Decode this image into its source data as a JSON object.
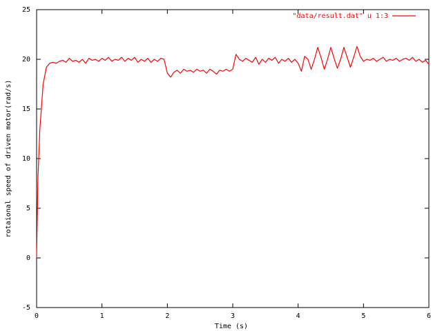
{
  "chart_data": {
    "type": "line",
    "x_label": "Time (s)",
    "y_label": "rotaional speed of driven motor(rad/s)",
    "x": [
      0,
      0.02,
      0.05,
      0.1,
      0.15,
      0.2,
      0.25,
      0.3,
      0.35,
      0.4,
      0.45,
      0.5,
      0.55,
      0.6,
      0.65,
      0.7,
      0.75,
      0.8,
      0.85,
      0.9,
      0.95,
      1,
      1.05,
      1.1,
      1.15,
      1.2,
      1.25,
      1.3,
      1.35,
      1.4,
      1.45,
      1.5,
      1.55,
      1.6,
      1.65,
      1.7,
      1.75,
      1.8,
      1.85,
      1.9,
      1.95,
      2,
      2.05,
      2.1,
      2.15,
      2.2,
      2.25,
      2.3,
      2.35,
      2.4,
      2.45,
      2.5,
      2.55,
      2.6,
      2.65,
      2.7,
      2.75,
      2.8,
      2.85,
      2.9,
      2.95,
      3,
      3.05,
      3.1,
      3.15,
      3.2,
      3.25,
      3.3,
      3.35,
      3.4,
      3.45,
      3.5,
      3.55,
      3.6,
      3.65,
      3.7,
      3.75,
      3.8,
      3.85,
      3.9,
      3.95,
      4,
      4.05,
      4.1,
      4.15,
      4.2,
      4.25,
      4.3,
      4.35,
      4.4,
      4.45,
      4.5,
      4.55,
      4.6,
      4.65,
      4.7,
      4.75,
      4.8,
      4.85,
      4.9,
      4.95,
      5,
      5.05,
      5.1,
      5.15,
      5.2,
      5.25,
      5.3,
      5.35,
      5.4,
      5.45,
      5.5,
      5.55,
      5.6,
      5.65,
      5.7,
      5.75,
      5.8,
      5.85,
      5.9,
      5.95,
      6
    ],
    "series": [
      {
        "name": "\"data/result.dat\" u 1:3",
        "color": "#ff0000",
        "values": [
          0,
          8,
          13,
          17.5,
          19.2,
          19.6,
          19.7,
          19.6,
          19.8,
          19.9,
          19.7,
          20.1,
          19.8,
          19.9,
          19.7,
          20.0,
          19.6,
          20.1,
          19.9,
          20.0,
          19.8,
          20.1,
          19.9,
          20.2,
          19.8,
          20.0,
          19.9,
          20.2,
          19.8,
          20.1,
          19.9,
          20.2,
          19.7,
          20.0,
          19.8,
          20.1,
          19.7,
          20.0,
          19.8,
          20.1,
          20.0,
          18.6,
          18.2,
          18.7,
          18.9,
          18.6,
          19.0,
          18.8,
          18.9,
          18.7,
          19.0,
          18.8,
          18.9,
          18.6,
          19.0,
          18.8,
          18.5,
          18.9,
          18.8,
          19.0,
          18.8,
          19.0,
          20.5,
          20.0,
          19.8,
          20.1,
          19.9,
          19.7,
          20.2,
          19.5,
          20.0,
          19.7,
          20.1,
          19.9,
          20.2,
          19.6,
          20.0,
          19.8,
          20.1,
          19.7,
          20.0,
          19.6,
          18.8,
          20.3,
          20.0,
          19.0,
          20.0,
          21.2,
          20.2,
          19.0,
          20.0,
          21.2,
          20.1,
          19.1,
          20.0,
          21.2,
          20.2,
          19.2,
          20.2,
          21.3,
          20.3,
          19.8,
          20.0,
          19.9,
          20.1,
          19.8,
          20.0,
          20.2,
          19.8,
          20.0,
          19.9,
          20.1,
          19.8,
          20.0,
          20.1,
          19.9,
          20.2,
          19.8,
          20.0,
          19.7,
          19.9,
          19.5
        ]
      }
    ],
    "xlim": [
      0,
      6
    ],
    "ylim": [
      -5,
      25
    ],
    "xticks": [
      0,
      1,
      2,
      3,
      4,
      5,
      6
    ],
    "yticks": [
      -5,
      0,
      5,
      10,
      15,
      20,
      25
    ],
    "legend": "top-right"
  }
}
